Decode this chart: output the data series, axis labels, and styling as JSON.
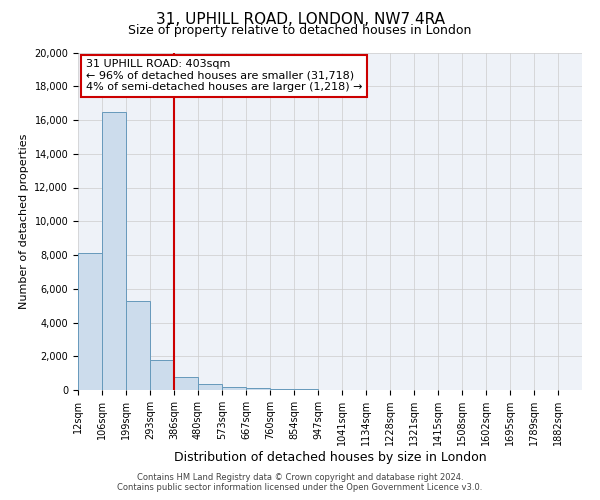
{
  "title": "31, UPHILL ROAD, LONDON, NW7 4RA",
  "subtitle": "Size of property relative to detached houses in London",
  "xlabel": "Distribution of detached houses by size in London",
  "ylabel": "Number of detached properties",
  "bar_color": "#ccdcec",
  "bar_edge_color": "#6699bb",
  "fig_bg_color": "#ffffff",
  "plot_bg_color": "#eef2f8",
  "grid_color": "#cccccc",
  "annotation_line1": "31 UPHILL ROAD: 403sqm",
  "annotation_line2": "← 96% of detached houses are smaller (31,718)",
  "annotation_line3": "4% of semi-detached houses are larger (1,218) →",
  "red_line_color": "#cc0000",
  "annotation_edge_color": "#cc0000",
  "ylim": [
    0,
    20000
  ],
  "yticks": [
    0,
    2000,
    4000,
    6000,
    8000,
    10000,
    12000,
    14000,
    16000,
    18000,
    20000
  ],
  "categories": [
    "12sqm",
    "106sqm",
    "199sqm",
    "293sqm",
    "386sqm",
    "480sqm",
    "573sqm",
    "667sqm",
    "760sqm",
    "854sqm",
    "947sqm",
    "1041sqm",
    "1134sqm",
    "1228sqm",
    "1321sqm",
    "1415sqm",
    "1508sqm",
    "1602sqm",
    "1695sqm",
    "1789sqm",
    "1882sqm"
  ],
  "values": [
    8100,
    16500,
    5300,
    1800,
    800,
    350,
    185,
    130,
    80,
    55,
    18,
    0,
    0,
    0,
    0,
    0,
    0,
    0,
    0,
    0,
    0
  ],
  "red_line_x": 4.0,
  "footer_line1": "Contains HM Land Registry data © Crown copyright and database right 2024.",
  "footer_line2": "Contains public sector information licensed under the Open Government Licence v3.0.",
  "title_fontsize": 11,
  "subtitle_fontsize": 9,
  "ylabel_fontsize": 8,
  "xlabel_fontsize": 9,
  "tick_fontsize": 7,
  "annotation_fontsize": 8,
  "footer_fontsize": 6
}
